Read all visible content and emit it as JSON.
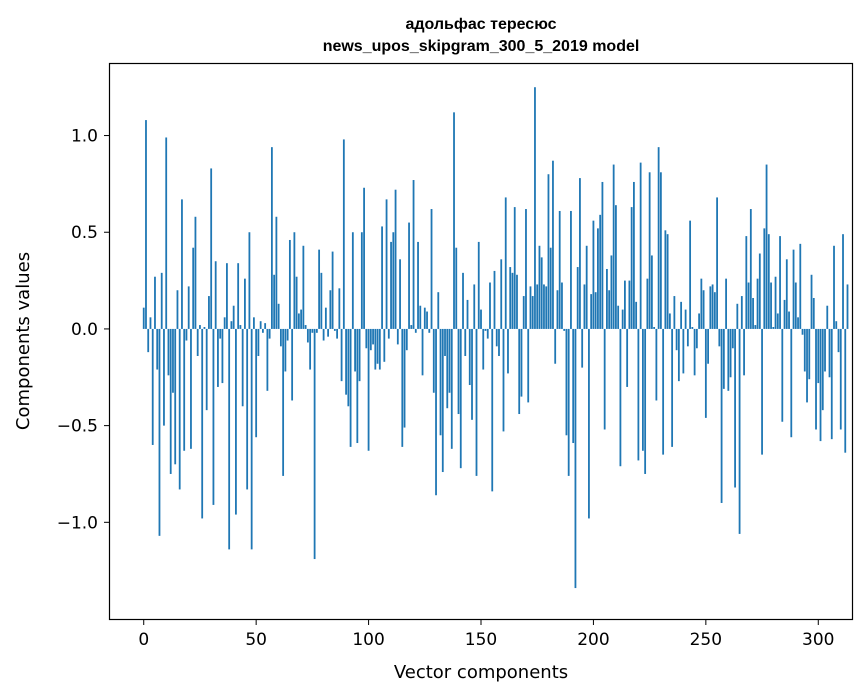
{
  "chart_data": {
    "type": "bar",
    "title_line1": "адольфас тересюс",
    "title_line2": "news_upos_skipgram_300_5_2019 model",
    "xlabel": "Vector components",
    "ylabel": "Components values",
    "xlim": [
      -15,
      315
    ],
    "ylim": [
      -1.5,
      1.37
    ],
    "xticks": [
      0,
      50,
      100,
      150,
      200,
      250,
      300
    ],
    "xtick_labels": [
      "0",
      "50",
      "100",
      "150",
      "200",
      "250",
      "300"
    ],
    "yticks": [
      -1.0,
      -0.5,
      0.0,
      0.5,
      1.0
    ],
    "ytick_labels": [
      "−1.0",
      "−0.5",
      "0.0",
      "0.5",
      "1.0"
    ],
    "bar_color": "#1f77b4",
    "grid": false,
    "legend": "none",
    "values": [
      0.11,
      1.08,
      -0.12,
      0.06,
      -0.6,
      0.27,
      -0.21,
      -1.07,
      0.29,
      -0.5,
      0.99,
      -0.24,
      -0.75,
      -0.33,
      -0.7,
      0.2,
      -0.83,
      0.67,
      -0.63,
      -0.06,
      0.22,
      -0.62,
      0.42,
      0.58,
      -0.14,
      0.02,
      -0.98,
      0.01,
      -0.42,
      0.17,
      0.83,
      -0.91,
      0.35,
      -0.3,
      -0.05,
      -0.28,
      0.06,
      0.34,
      -1.14,
      0.04,
      0.12,
      -0.96,
      0.34,
      0.02,
      -0.4,
      0.26,
      -0.83,
      0.5,
      -1.14,
      0.06,
      -0.56,
      -0.14,
      0.04,
      -0.02,
      0.03,
      -0.32,
      -0.05,
      0.94,
      0.28,
      0.58,
      0.13,
      -0.09,
      -0.76,
      -0.22,
      -0.06,
      0.46,
      -0.37,
      0.5,
      0.27,
      0.08,
      0.1,
      0.43,
      0.02,
      -0.07,
      -0.21,
      -0.02,
      -1.19,
      -0.02,
      0.41,
      0.29,
      -0.06,
      0.11,
      -0.04,
      0.2,
      0.4,
      -0.01,
      -0.05,
      0.21,
      -0.27,
      0.98,
      -0.34,
      -0.4,
      -0.61,
      0.5,
      -0.22,
      -0.59,
      -0.27,
      0.5,
      0.73,
      -0.1,
      -0.63,
      -0.11,
      -0.08,
      -0.21,
      -0.18,
      -0.21,
      0.53,
      -0.17,
      0.67,
      -0.05,
      0.45,
      0.5,
      0.72,
      -0.08,
      0.36,
      -0.61,
      -0.51,
      -0.11,
      0.55,
      0.02,
      0.77,
      -0.02,
      0.45,
      0.12,
      -0.24,
      0.11,
      0.09,
      -0.02,
      0.62,
      -0.33,
      -0.86,
      0.19,
      -0.55,
      -0.74,
      -0.14,
      -0.41,
      -0.33,
      -0.62,
      1.12,
      0.42,
      -0.44,
      -0.72,
      0.29,
      -0.14,
      0.15,
      -0.29,
      -0.47,
      0.23,
      -0.76,
      0.45,
      0.1,
      -0.21,
      -0.01,
      -0.05,
      0.24,
      -0.84,
      0.3,
      -0.09,
      -0.14,
      0.36,
      -0.53,
      0.68,
      -0.23,
      0.32,
      0.29,
      0.63,
      0.28,
      -0.44,
      -0.35,
      0.17,
      0.62,
      -0.38,
      0.22,
      0.17,
      1.25,
      0.23,
      0.43,
      0.37,
      0.23,
      0.22,
      0.8,
      0.42,
      0.87,
      -0.18,
      0.2,
      0.61,
      0.24,
      -0.01,
      -0.55,
      -0.76,
      0.61,
      -0.59,
      -1.34,
      0.32,
      0.78,
      -0.2,
      0.23,
      0.43,
      -0.98,
      0.18,
      0.56,
      0.19,
      0.52,
      0.59,
      0.76,
      -0.52,
      0.31,
      0.2,
      0.38,
      0.85,
      0.64,
      0.12,
      -0.71,
      0.1,
      0.25,
      -0.3,
      0.25,
      0.63,
      0.76,
      0.14,
      -0.68,
      0.86,
      -0.63,
      -0.75,
      0.26,
      0.81,
      0.38,
      0.01,
      -0.37,
      0.94,
      0.81,
      -0.65,
      0.51,
      0.49,
      0.08,
      -0.61,
      0.17,
      -0.11,
      -0.27,
      0.14,
      -0.23,
      0.1,
      -0.09,
      0.56,
      0.01,
      -0.24,
      -0.1,
      0.08,
      0.26,
      0.2,
      -0.46,
      -0.18,
      0.22,
      0.23,
      0.19,
      0.68,
      -0.09,
      -0.9,
      -0.31,
      0.26,
      -0.32,
      -0.25,
      -0.1,
      -0.82,
      0.13,
      -1.06,
      0.17,
      -0.24,
      0.48,
      0.24,
      0.62,
      0.16,
      0.02,
      0.26,
      0.39,
      -0.65,
      0.52,
      0.85,
      0.49,
      0.24,
      0.01,
      0.27,
      0.08,
      0.48,
      -0.48,
      0.15,
      0.36,
      0.09,
      -0.56,
      0.41,
      0.24,
      0.06,
      0.44,
      -0.03,
      -0.22,
      -0.38,
      -0.26,
      0.28,
      0.16,
      -0.52,
      -0.28,
      -0.58,
      -0.42,
      -0.22,
      0.12,
      -0.25,
      -0.57,
      0.43,
      0.04,
      -0.12,
      -0.52,
      0.49,
      -0.64,
      0.23
    ]
  }
}
